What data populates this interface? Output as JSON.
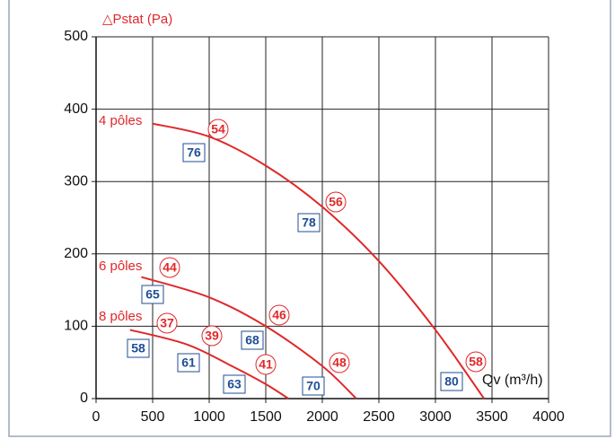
{
  "chart_data": {
    "type": "line",
    "y_label": "△Pstat (Pa)",
    "x_label": "Qv (m³/h)",
    "xlim": [
      0,
      4000
    ],
    "ylim": [
      0,
      500
    ],
    "xticks": [
      0,
      500,
      1000,
      1500,
      2000,
      2500,
      3000,
      3500,
      4000
    ],
    "yticks": [
      0,
      100,
      200,
      300,
      400,
      500
    ],
    "grid": true,
    "series": [
      {
        "name": "4 pôles",
        "color": "#e0282a",
        "x": [
          500,
          1000,
          1500,
          2000,
          2500,
          3000,
          3430
        ],
        "values": [
          380,
          362,
          322,
          265,
          190,
          95,
          0
        ]
      },
      {
        "name": "6 pôles",
        "color": "#e0282a",
        "x": [
          400,
          1000,
          1500,
          2000,
          2300
        ],
        "values": [
          168,
          140,
          100,
          45,
          0
        ]
      },
      {
        "name": "8 pôles",
        "color": "#e0282a",
        "x": [
          300,
          800,
          1200,
          1500,
          1700
        ],
        "values": [
          95,
          75,
          45,
          20,
          0
        ]
      }
    ],
    "circled_labels": [
      "54",
      "56",
      "44",
      "46",
      "37",
      "39",
      "41",
      "48",
      "58"
    ],
    "boxed_labels": [
      "76",
      "78",
      "65",
      "68",
      "58",
      "61",
      "63",
      "70",
      "80"
    ]
  }
}
